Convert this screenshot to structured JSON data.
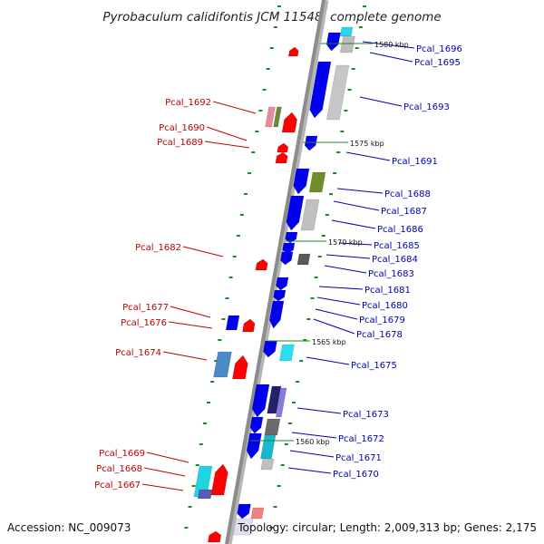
{
  "title": "Pyrobaculum calidifontis JCM 11548, complete genome",
  "footer": {
    "accession": "Accession: NC_009073",
    "topology": "Topology: circular; Length: 2,009,313 bp; Genes: 2,175"
  },
  "scale_labels": [
    "1580 kbp",
    "1575 kbp",
    "1570 kbp",
    "1565 kbp",
    "1560 kbp"
  ],
  "colors": {
    "forward_strand": "#0000ee",
    "reverse_strand": "#ff0000",
    "forward_label": "#0000b4",
    "reverse_label": "#c00000",
    "axis": "#8c8c8c",
    "tick": "#1a8a1a"
  },
  "genes_left": [
    {
      "label": "Pcal_1692"
    },
    {
      "label": "Pcal_1690"
    },
    {
      "label": "Pcal_1689"
    },
    {
      "label": "Pcal_1682"
    },
    {
      "label": "Pcal_1677"
    },
    {
      "label": "Pcal_1676"
    },
    {
      "label": "Pcal_1674"
    },
    {
      "label": "Pcal_1669"
    },
    {
      "label": "Pcal_1668"
    },
    {
      "label": "Pcal_1667"
    }
  ],
  "genes_right": [
    {
      "label": "Pcal_1696"
    },
    {
      "label": "Pcal_1695"
    },
    {
      "label": "Pcal_1693"
    },
    {
      "label": "Pcal_1691"
    },
    {
      "label": "Pcal_1688"
    },
    {
      "label": "Pcal_1687"
    },
    {
      "label": "Pcal_1686"
    },
    {
      "label": "Pcal_1685"
    },
    {
      "label": "Pcal_1684"
    },
    {
      "label": "Pcal_1683"
    },
    {
      "label": "Pcal_1681"
    },
    {
      "label": "Pcal_1680"
    },
    {
      "label": "Pcal_1679"
    },
    {
      "label": "Pcal_1678"
    },
    {
      "label": "Pcal_1675"
    },
    {
      "label": "Pcal_1673"
    },
    {
      "label": "Pcal_1672"
    },
    {
      "label": "Pcal_1671"
    },
    {
      "label": "Pcal_1670"
    }
  ]
}
